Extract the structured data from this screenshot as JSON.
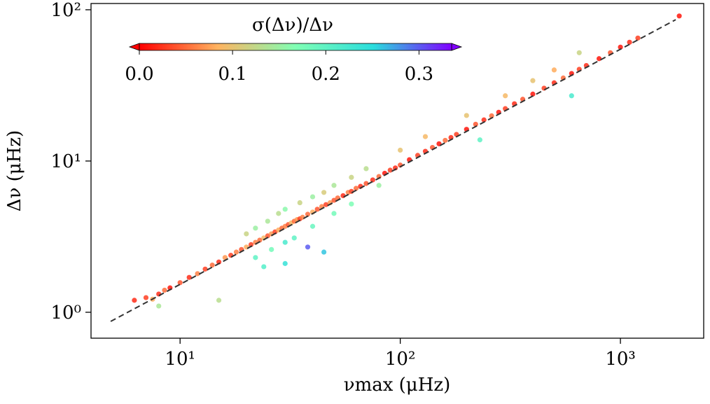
{
  "chart_data": {
    "type": "scatter",
    "xlabel": "νmax (μHz)",
    "ylabel": "Δν (μHz)",
    "log_x": true,
    "log_y": true,
    "xlim": [
      3.94,
      2389
    ],
    "ylim": [
      0.674,
      110
    ],
    "xticks": [
      {
        "value": 10,
        "label": "10¹"
      },
      {
        "value": 100,
        "label": "10²"
      },
      {
        "value": 1000,
        "label": "10³"
      }
    ],
    "yticks": [
      {
        "value": 1,
        "label": "10⁰"
      },
      {
        "value": 10,
        "label": "10¹"
      },
      {
        "value": 100,
        "label": "10²"
      }
    ],
    "colorbar": {
      "label": "σ(Δν)/Δν",
      "clim": [
        0,
        0.335
      ],
      "ticks": [
        {
          "value": 0,
          "label": "0.0"
        },
        {
          "value": 0.1,
          "label": "0.1"
        },
        {
          "value": 0.2,
          "label": "0.2"
        },
        {
          "value": 0.3,
          "label": "0.3"
        }
      ],
      "colormap": [
        "#ff0000",
        "#ffb360",
        "#80ffb4",
        "#2adddd",
        "#8000ff"
      ]
    },
    "series": [
      {
        "x": [
          6.2,
          7,
          7.5,
          8,
          8.5,
          9,
          10,
          11,
          12,
          13,
          14,
          15,
          16,
          17,
          18,
          19,
          20,
          21,
          22,
          23,
          24,
          25,
          26,
          27,
          28,
          29,
          30,
          31,
          32,
          33,
          34,
          35,
          36,
          38,
          40,
          42,
          44,
          46,
          48,
          50,
          52,
          55,
          58,
          60,
          63,
          66,
          70,
          75,
          80,
          85,
          90,
          95,
          100,
          110,
          120,
          130,
          140,
          150,
          160,
          170,
          180,
          200,
          220,
          240,
          260,
          280,
          300,
          330,
          360,
          400,
          450,
          500,
          550,
          600,
          650,
          700,
          800,
          900,
          1000,
          1100,
          1200,
          1850,
          20,
          22,
          25,
          28,
          30,
          35,
          40,
          45,
          50,
          60,
          70,
          100,
          130,
          200,
          300,
          400,
          500,
          22,
          26,
          30,
          33,
          40,
          50,
          60,
          80,
          24,
          30,
          38,
          45,
          15,
          8,
          230,
          600,
          650
        ],
        "values": [
          1.2,
          1.25,
          1.22,
          1.32,
          1.4,
          1.45,
          1.57,
          1.7,
          1.8,
          1.93,
          2.05,
          2.15,
          2.3,
          2.38,
          2.5,
          2.6,
          2.7,
          2.8,
          2.9,
          3.0,
          3.1,
          3.2,
          3.3,
          3.4,
          3.5,
          3.6,
          3.7,
          3.8,
          3.9,
          4.0,
          4.1,
          4.15,
          4.25,
          4.45,
          4.6,
          4.8,
          5.0,
          5.15,
          5.3,
          5.5,
          5.7,
          5.9,
          6.2,
          6.3,
          6.6,
          6.8,
          7.1,
          7.5,
          7.9,
          8.3,
          8.7,
          9.0,
          9.4,
          10.2,
          10.9,
          11.6,
          12.3,
          13.0,
          13.7,
          14.3,
          15.0,
          16.2,
          17.5,
          18.7,
          19.9,
          21.0,
          22.2,
          23.9,
          25.6,
          27.7,
          30.3,
          32.9,
          35.4,
          37.9,
          40.4,
          42.8,
          47.5,
          52,
          56.6,
          61,
          65,
          91,
          3.3,
          3.6,
          4.0,
          4.5,
          4.8,
          5.3,
          5.8,
          6.2,
          6.9,
          7.8,
          8.9,
          11.8,
          14.5,
          20,
          27,
          34,
          40,
          2.3,
          2.6,
          2.9,
          3.1,
          3.7,
          4.5,
          5.2,
          6.9,
          2.0,
          2.1,
          2.7,
          2.5,
          1.2,
          1.1,
          13.8,
          27,
          52
        ],
        "color_values": [
          0.02,
          0.03,
          0.08,
          0.02,
          0.05,
          0.01,
          0.04,
          0.02,
          0.06,
          0.03,
          0.05,
          0.02,
          0.07,
          0.03,
          0.06,
          0.04,
          0.08,
          0.03,
          0.06,
          0.05,
          0.09,
          0.04,
          0.07,
          0.03,
          0.08,
          0.05,
          0.06,
          0.04,
          0.09,
          0.05,
          0.07,
          0.03,
          0.06,
          0.05,
          0.08,
          0.04,
          0.06,
          0.03,
          0.07,
          0.04,
          0.05,
          0.02,
          0.06,
          0.03,
          0.05,
          0.02,
          0.04,
          0.02,
          0.05,
          0.01,
          0.03,
          0.02,
          0.04,
          0.01,
          0.03,
          0.02,
          0.04,
          0.01,
          0.05,
          0.02,
          0.03,
          0.01,
          0.04,
          0.02,
          0.05,
          0.01,
          0.03,
          0.02,
          0.04,
          0.01,
          0.03,
          0.02,
          0.05,
          0.01,
          0.03,
          0.02,
          0.01,
          0.04,
          0.01,
          0.02,
          0.03,
          0.01,
          0.12,
          0.15,
          0.14,
          0.13,
          0.16,
          0.12,
          0.15,
          0.11,
          0.14,
          0.12,
          0.13,
          0.1,
          0.09,
          0.1,
          0.09,
          0.1,
          0.08,
          0.2,
          0.18,
          0.22,
          0.2,
          0.19,
          0.18,
          0.17,
          0.15,
          0.21,
          0.24,
          0.3,
          0.26,
          0.13,
          0.14,
          0.2,
          0.22,
          0.12
        ]
      }
    ],
    "fit_line": {
      "x": [
        4.84,
        1783
      ],
      "values": [
        0.87,
        86
      ],
      "color": "#333333",
      "style": "dashed"
    }
  }
}
